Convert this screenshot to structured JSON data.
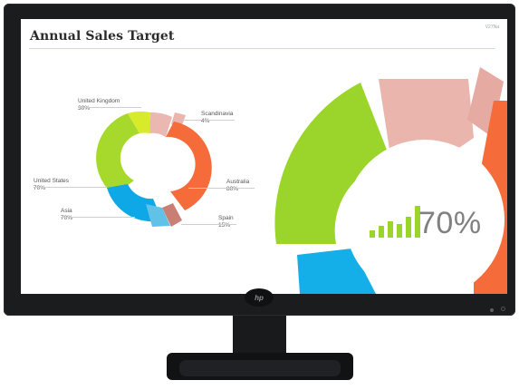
{
  "screen": {
    "title": "Annual Sales Target",
    "model": "V27Na"
  },
  "donut_labels": [
    {
      "name": "United Kingdom",
      "value": "30%"
    },
    {
      "name": "Scandinavia",
      "value": "4%"
    },
    {
      "name": "United States",
      "value": "70%"
    },
    {
      "name": "Australia",
      "value": "80%"
    },
    {
      "name": "Asia",
      "value": "70%"
    },
    {
      "name": "Spain",
      "value": "15%"
    }
  ],
  "big_metric": {
    "value": "70%"
  },
  "logo": {
    "text": "hp"
  },
  "icons": {
    "power": "power-icon",
    "indicator": "led-indicator-icon",
    "bar": "bar-chart-icon"
  },
  "colors": {
    "bezel": "#1b1c1e",
    "green": "#8ccf2a",
    "pink": "#e9b5ad",
    "orange": "#f56b3a",
    "blue": "#0ea8e6",
    "teal": "#1aa9c9",
    "brick": "#c97f74"
  }
}
